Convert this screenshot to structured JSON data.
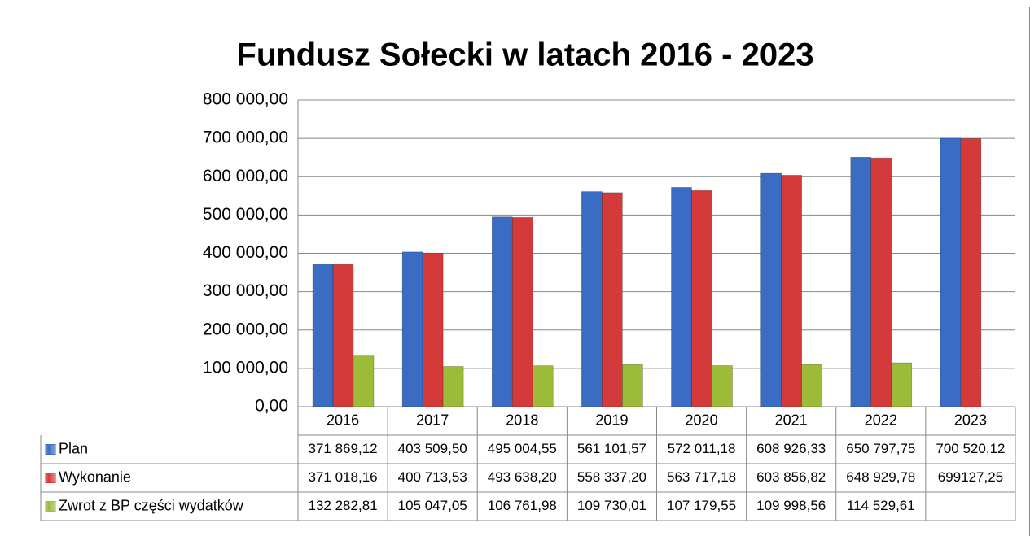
{
  "chart_data": {
    "type": "bar",
    "title": "Fundusz Sołecki w latach 2016 - 2023",
    "categories": [
      "2016",
      "2017",
      "2018",
      "2019",
      "2020",
      "2021",
      "2022",
      "2023"
    ],
    "series": [
      {
        "name": "Plan",
        "color": "#3a6cc4",
        "values": [
          371869.12,
          403509.5,
          495004.55,
          561101.57,
          572011.18,
          608926.33,
          650797.75,
          700520.12
        ],
        "value_labels": [
          "371 869,12",
          "403 509,50",
          "495 004,55",
          "561 101,57",
          "572 011,18",
          "608 926,33",
          "650 797,75",
          "700 520,12"
        ]
      },
      {
        "name": "Wykonanie",
        "color": "#d43a3a",
        "values": [
          371018.16,
          400713.53,
          493638.2,
          558337.2,
          563717.18,
          603856.82,
          648929.78,
          699127.25
        ],
        "value_labels": [
          "371 018,16",
          "400 713,53",
          "493 638,20",
          "558 337,20",
          "563 717,18",
          "603 856,82",
          "648 929,78",
          "699127,25"
        ]
      },
      {
        "name": "Zwrot z BP części wydatków",
        "color": "#9bbb39",
        "values": [
          132282.81,
          105047.05,
          106761.98,
          109730.01,
          107179.55,
          109998.56,
          114529.61,
          null
        ],
        "value_labels": [
          "132 282,81",
          "105 047,05",
          "106 761,98",
          "109 730,01",
          "107 179,55",
          "109 998,56",
          "114 529,61",
          null
        ]
      }
    ],
    "ylim": [
      0,
      800000
    ],
    "yticks": [
      {
        "value": 0,
        "label": "0,00"
      },
      {
        "value": 100000,
        "label": "100 000,00"
      },
      {
        "value": 200000,
        "label": "200 000,00"
      },
      {
        "value": 300000,
        "label": "300 000,00"
      },
      {
        "value": 400000,
        "label": "400 000,00"
      },
      {
        "value": 500000,
        "label": "500 000,00"
      },
      {
        "value": 600000,
        "label": "600 000,00"
      },
      {
        "value": 700000,
        "label": "700 000,00"
      },
      {
        "value": 800000,
        "label": "800 000,00"
      }
    ],
    "grid": true
  }
}
